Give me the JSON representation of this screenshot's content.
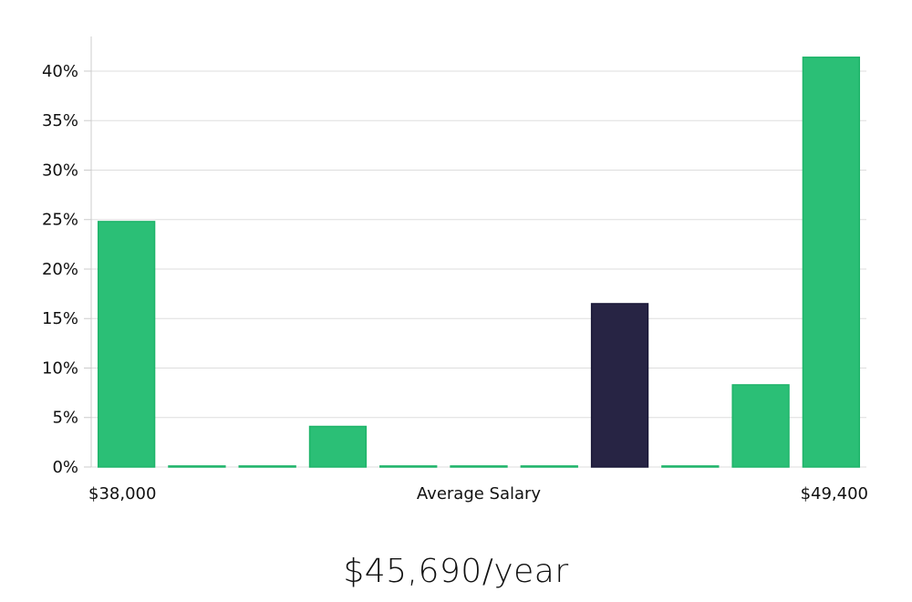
{
  "chart_data": {
    "type": "bar",
    "title": "",
    "xlabel": "Average Salary",
    "ylabel": "",
    "x_range_labels": [
      "$38,000",
      "$49,400"
    ],
    "yticks": [
      "0%",
      "5%",
      "10%",
      "15%",
      "20%",
      "25%",
      "30%",
      "35%",
      "40%"
    ],
    "ylim": [
      0,
      43.5
    ],
    "grid": true,
    "values": [
      24.8,
      0.1,
      0.1,
      4.1,
      0.1,
      0.1,
      0.1,
      16.5,
      0.1,
      8.3,
      41.4
    ],
    "highlight_index": 7,
    "colors": {
      "bar": "#2bbf76",
      "bar_edge": "#1fb46a",
      "highlight": "#272444",
      "highlight_edge": "#1a1838",
      "grid": "#dddddd",
      "axis": "#cccccc"
    }
  },
  "caption": "$45,690/year"
}
